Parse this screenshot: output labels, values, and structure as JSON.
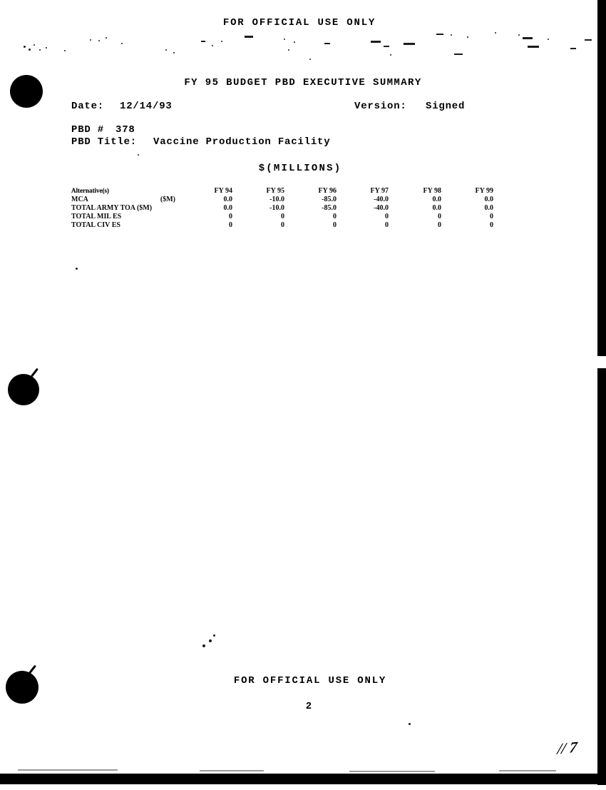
{
  "classification": {
    "top_banner": "FOR OFFICIAL USE ONLY",
    "bottom_banner": "FOR OFFICIAL USE ONLY"
  },
  "title": "FY 95 BUDGET PBD EXECUTIVE SUMMARY",
  "meta": {
    "date_label": "Date:",
    "date_value": "12/14/93",
    "version_label": "Version:",
    "version_value": "Signed",
    "pbd_number_label": "PBD #",
    "pbd_number_value": "378",
    "pbd_title_label": "PBD Title:",
    "pbd_title_value": "Vaccine Production Facility"
  },
  "units_heading": "$(MILLIONS)",
  "table": {
    "row_header": "Alternative(s)",
    "columns": [
      "FY 94",
      "FY 95",
      "FY 96",
      "FY 97",
      "FY 98",
      "FY 99"
    ],
    "rows": [
      {
        "label": "MCA",
        "unit": "($M)",
        "values": [
          "0.0",
          "-10.0",
          "-85.0",
          "-40.0",
          "0.0",
          "0.0"
        ]
      },
      {
        "label": "TOTAL ARMY TOA ($M)",
        "unit": "",
        "values": [
          "0.0",
          "-10.0",
          "-85.0",
          "-40.0",
          "0.0",
          "0.0"
        ]
      },
      {
        "label": "TOTAL MIL ES",
        "unit": "",
        "values": [
          "0",
          "0",
          "0",
          "0",
          "0",
          "0"
        ]
      },
      {
        "label": "TOTAL CIV ES",
        "unit": "",
        "values": [
          "0",
          "0",
          "0",
          "0",
          "0",
          "0"
        ]
      }
    ]
  },
  "page_number": "2",
  "handwritten_note": "// 7"
}
